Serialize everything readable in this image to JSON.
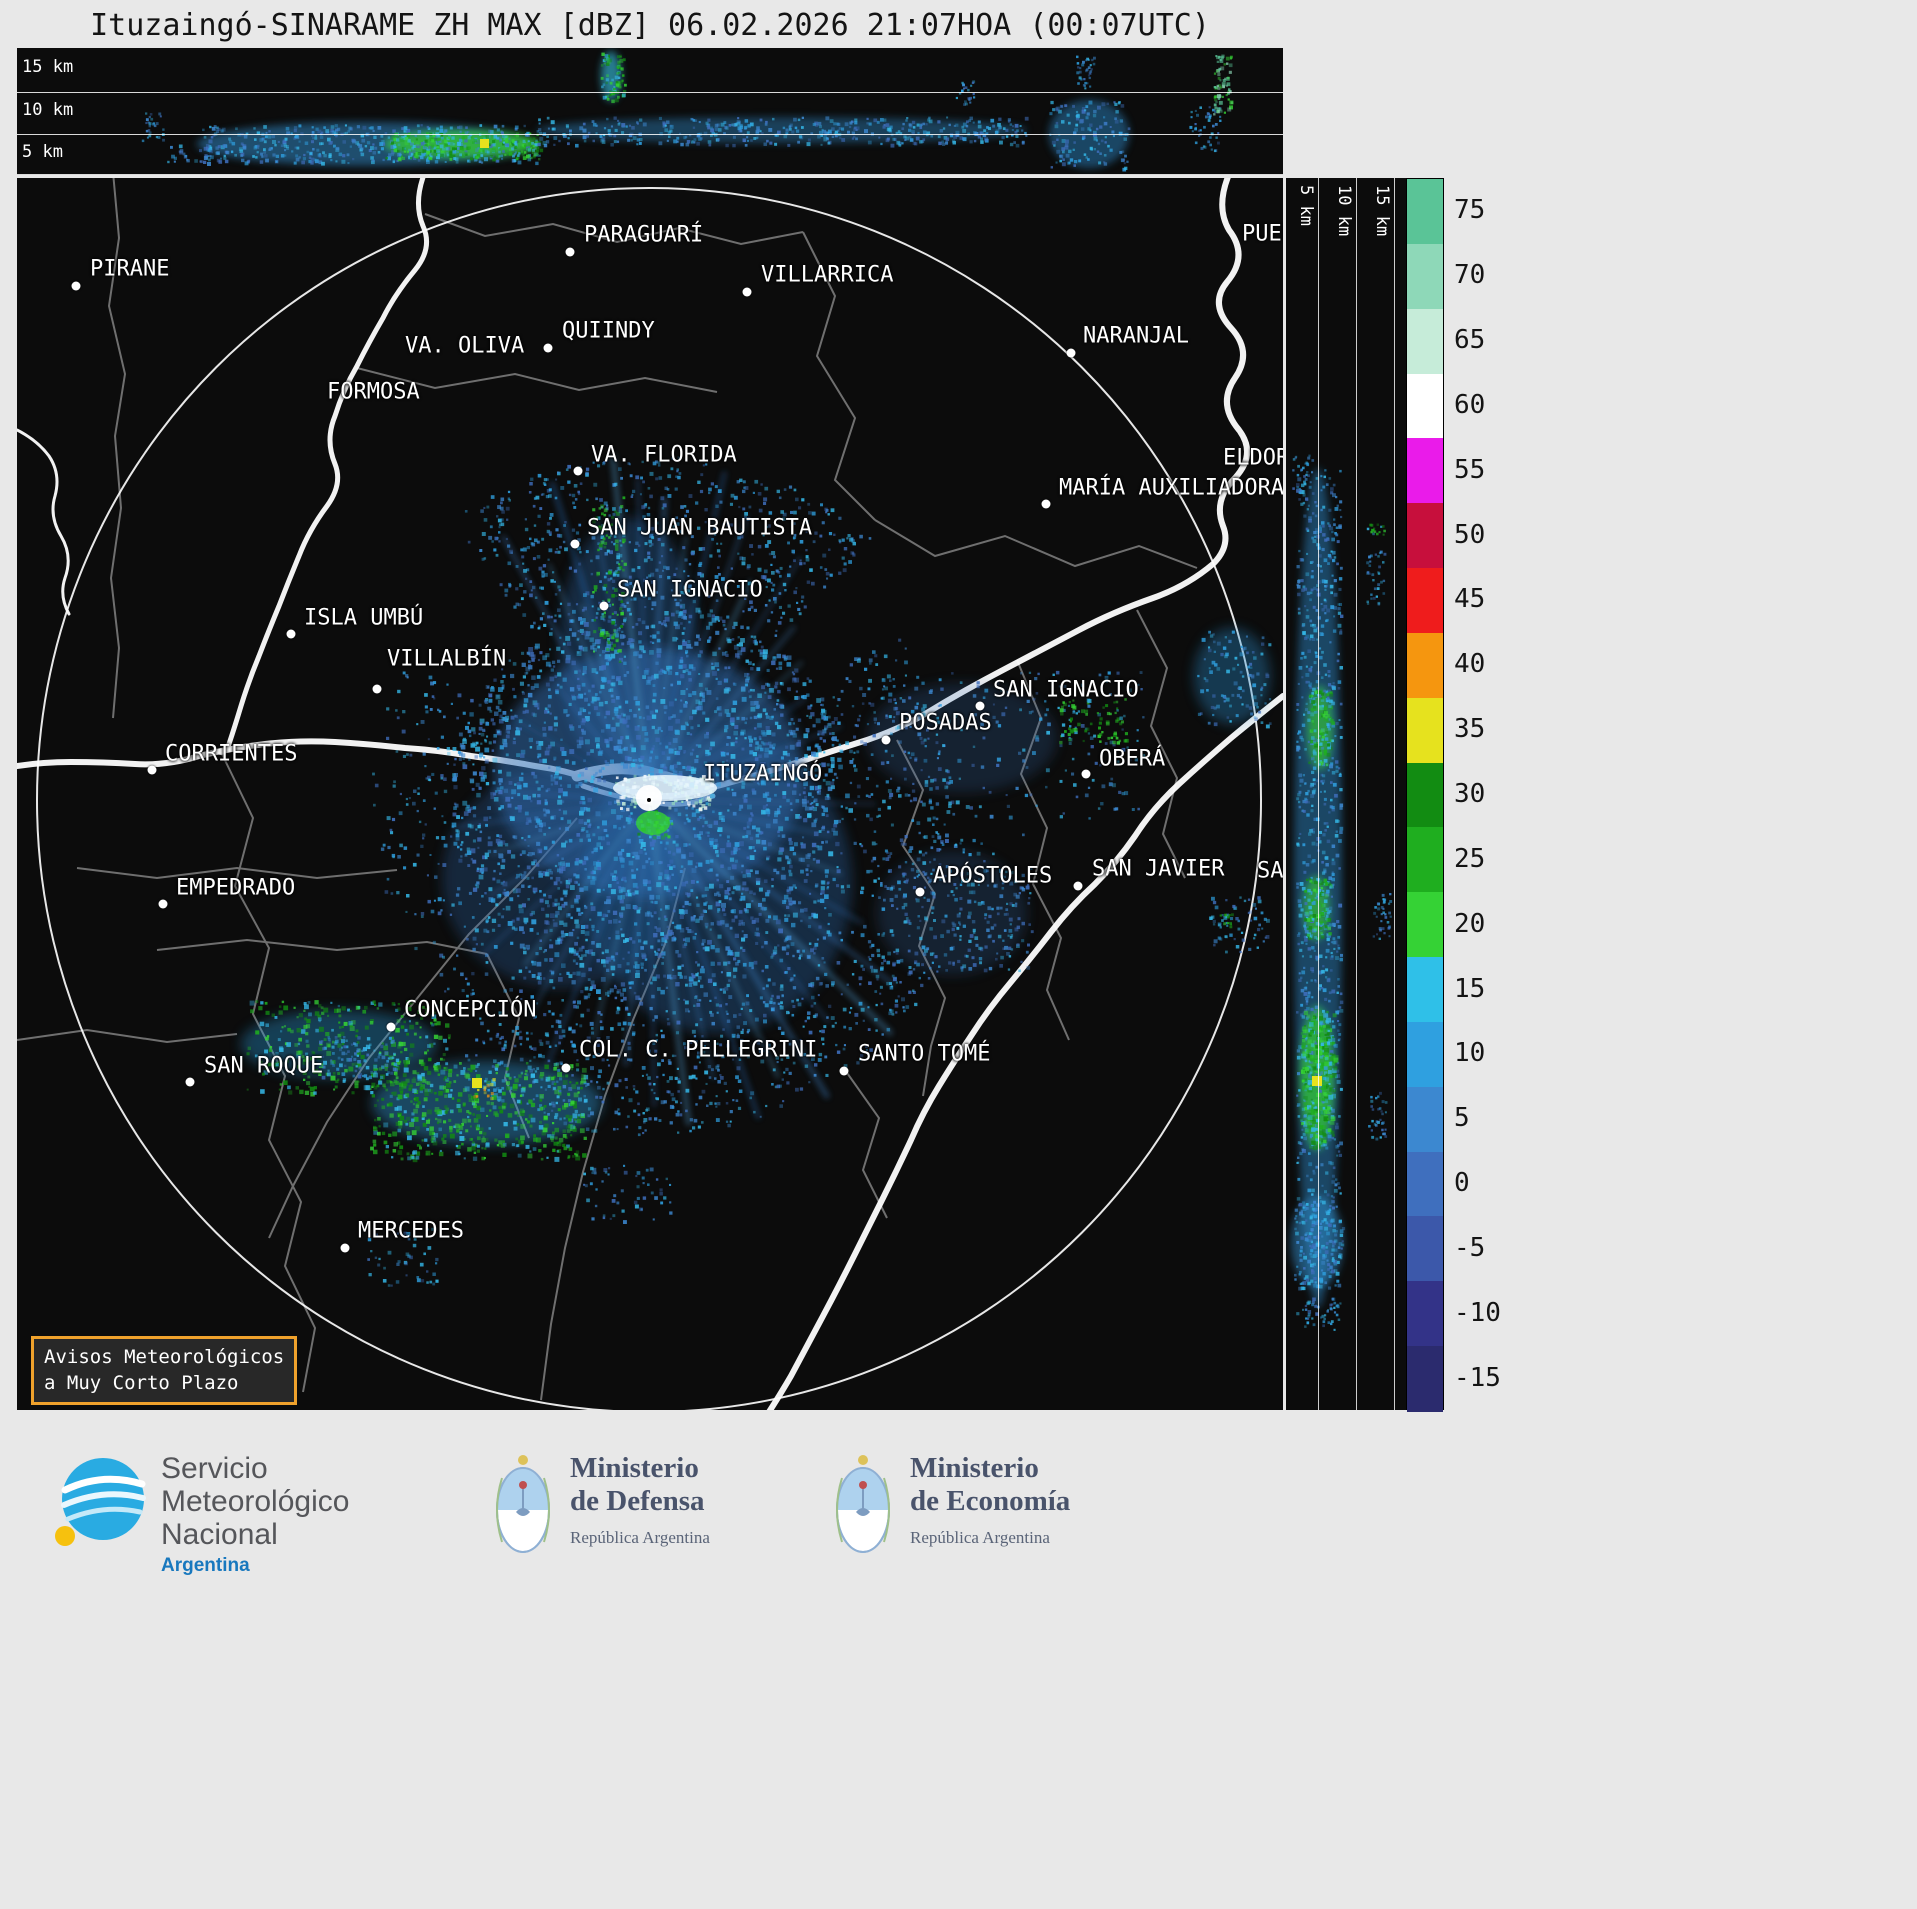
{
  "title": "Ituzaingó-SINARAME ZH MAX [dBZ] 06.02.2026 21:07HOA (00:07UTC)",
  "top_panel": {
    "labels": [
      "15 km",
      "10 km",
      "5 km"
    ]
  },
  "right_panel": {
    "labels": [
      "5 km",
      "10 km",
      "15 km"
    ]
  },
  "colorbar": {
    "unit": "dBZ",
    "ticks": [
      "75",
      "70",
      "65",
      "60",
      "55",
      "50",
      "45",
      "40",
      "35",
      "30",
      "25",
      "20",
      "15",
      "10",
      "5",
      "0",
      "-5",
      "-10",
      "-15"
    ],
    "colors": [
      "#5ac497",
      "#8ed8b8",
      "#c6ecd9",
      "#ffffff",
      "#ea1bea",
      "#c70f3c",
      "#ef1c1c",
      "#f5960f",
      "#e6e21e",
      "#128c12",
      "#1fae1f",
      "#35d235",
      "#2fc0e8",
      "#2fa0e0",
      "#3c88d0",
      "#3f6fbe",
      "#3c58aa",
      "#333388",
      "#2b2b6e"
    ]
  },
  "map": {
    "advisory": {
      "line1": "Avisos Meteorológicos",
      "line2": "a Muy Corto Plazo"
    },
    "radar_site": "ITUZAINGÓ",
    "cities": [
      {
        "name": "PIRANE",
        "dot": [
          59,
          108
        ],
        "label": [
          73,
          91
        ]
      },
      {
        "name": "PARAGUARÍ",
        "dot": [
          553,
          74
        ],
        "label": [
          567,
          57
        ]
      },
      {
        "name": "VILLARRICA",
        "dot": [
          730,
          114
        ],
        "label": [
          744,
          97
        ]
      },
      {
        "name": "QUIINDY",
        "dot": [
          531,
          170
        ],
        "label": [
          545,
          153
        ]
      },
      {
        "name": "VA. OLIVA",
        "dot": null,
        "label": [
          388,
          168
        ]
      },
      {
        "name": "FORMOSA",
        "dot": null,
        "label": [
          310,
          214
        ]
      },
      {
        "name": "NARANJAL",
        "dot": [
          1054,
          175
        ],
        "label": [
          1066,
          158
        ]
      },
      {
        "name": "VA. FLORIDA",
        "dot": [
          561,
          293
        ],
        "label": [
          574,
          277
        ]
      },
      {
        "name": "ELDORADO",
        "dot": null,
        "label": [
          1206,
          280
        ]
      },
      {
        "name": "MARÍA AUXILIADORA",
        "dot": [
          1029,
          326
        ],
        "label": [
          1042,
          310
        ]
      },
      {
        "name": "SAN JUAN BAUTISTA",
        "dot": [
          558,
          366
        ],
        "label": [
          570,
          350
        ]
      },
      {
        "name": "SAN IGNACIO",
        "dot": [
          587,
          428
        ],
        "label": [
          600,
          412
        ]
      },
      {
        "name": "ISLA UMBÚ",
        "dot": [
          274,
          456
        ],
        "label": [
          287,
          440
        ]
      },
      {
        "name": "VILLALBÍN",
        "dot": [
          360,
          511
        ],
        "label": [
          370,
          481
        ]
      },
      {
        "name": "SAN IGNACIO",
        "dot": [
          963,
          528
        ],
        "label": [
          976,
          512
        ]
      },
      {
        "name": "POSADAS",
        "dot": [
          869,
          562
        ],
        "label": [
          882,
          545
        ]
      },
      {
        "name": "CORRIENTES",
        "dot": [
          135,
          592
        ],
        "label": [
          148,
          576
        ]
      },
      {
        "name": "OBERÁ",
        "dot": [
          1069,
          596
        ],
        "label": [
          1082,
          581
        ]
      },
      {
        "name": "ITUZAINGÓ",
        "dot": null,
        "label": [
          686,
          596
        ]
      },
      {
        "name": "EMPEDRADO",
        "dot": [
          146,
          726
        ],
        "label": [
          159,
          710
        ]
      },
      {
        "name": "APÓSTOLES",
        "dot": [
          903,
          714
        ],
        "label": [
          916,
          698
        ]
      },
      {
        "name": "SAN JAVIER",
        "dot": [
          1061,
          708
        ],
        "label": [
          1075,
          691
        ]
      },
      {
        "name": "SAN VICENTE",
        "dot": null,
        "label": [
          1240,
          693
        ]
      },
      {
        "name": "CONCEPCIÓN",
        "dot": [
          374,
          849
        ],
        "label": [
          387,
          832
        ]
      },
      {
        "name": "COL. C. PELLEGRINI",
        "dot": [
          549,
          890
        ],
        "label": [
          562,
          872
        ]
      },
      {
        "name": "SANTO TOMÉ",
        "dot": [
          827,
          893
        ],
        "label": [
          841,
          876
        ]
      },
      {
        "name": "SAN ROQUE",
        "dot": [
          173,
          904
        ],
        "label": [
          187,
          888
        ]
      },
      {
        "name": "MERCEDES",
        "dot": [
          328,
          1070
        ],
        "label": [
          341,
          1053
        ]
      },
      {
        "name": "PUERTO RICO",
        "dot": null,
        "label": [
          1225,
          56
        ]
      }
    ]
  },
  "footer": {
    "smn": {
      "line1": "Servicio",
      "line2": "Meteorológico",
      "line3": "Nacional",
      "country": "Argentina"
    },
    "defensa": {
      "line1": "Ministerio",
      "line2": "de Defensa",
      "subtitle": "República Argentina"
    },
    "economia": {
      "line1": "Ministerio",
      "line2": "de Economía",
      "subtitle": "República Argentina"
    }
  }
}
